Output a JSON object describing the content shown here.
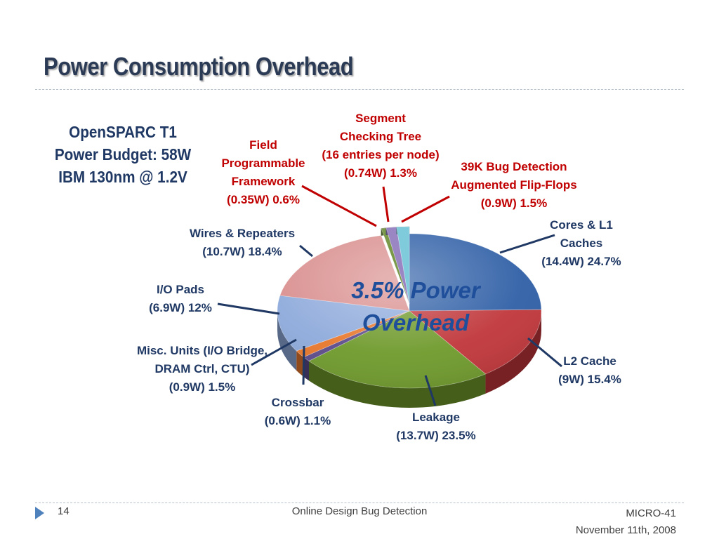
{
  "slide": {
    "title": "Power Consumption Overhead",
    "info_lines": [
      "OpenSPARC T1",
      "Power Budget: 58W",
      "IBM 130nm @ 1.2V"
    ],
    "page_number": "14",
    "footer_center": "Online Design Bug Detection",
    "footer_right_line1": "MICRO-41",
    "footer_right_line2": "November 11th, 2008"
  },
  "chart_data": {
    "type": "pie",
    "title": "",
    "center_annotation": [
      "3.5% Power",
      "Overhead"
    ],
    "unit": "W",
    "total": 58,
    "slices": [
      {
        "label_lines": [
          "Cores & L1",
          "Caches",
          "(14.4W) 24.7%"
        ],
        "watts": 14.4,
        "percent": 24.7,
        "color": "#2f5fa6",
        "highlight": false
      },
      {
        "label_lines": [
          "L2 Cache",
          "(9W) 15.4%"
        ],
        "watts": 9,
        "percent": 15.4,
        "color": "#c0363a",
        "highlight": false
      },
      {
        "label_lines": [
          "Leakage",
          "(13.7W) 23.5%"
        ],
        "watts": 13.7,
        "percent": 23.5,
        "color": "#6f9a2c",
        "highlight": false
      },
      {
        "label_lines": [
          "Crossbar",
          "(0.6W) 1.1%"
        ],
        "watts": 0.6,
        "percent": 1.1,
        "color": "#5b4a8a",
        "highlight": false
      },
      {
        "label_lines": [
          "Misc. Units (I/O Bridge,",
          "DRAM Ctrl, CTU)",
          "(0.9W) 1.5%"
        ],
        "watts": 0.9,
        "percent": 1.5,
        "color": "#e8772b",
        "highlight": false
      },
      {
        "label_lines": [
          "I/O Pads",
          "(6.9W) 12%"
        ],
        "watts": 6.9,
        "percent": 12,
        "color": "#8eaadb",
        "highlight": false
      },
      {
        "label_lines": [
          "Wires & Repeaters",
          "(10.7W) 18.4%"
        ],
        "watts": 10.7,
        "percent": 18.4,
        "color": "#d98d8d",
        "highlight": false
      },
      {
        "label_lines": [
          "Field",
          "Programmable",
          "Framework",
          "(0.35W) 0.6%"
        ],
        "watts": 0.35,
        "percent": 0.6,
        "color": "#7a9a4a",
        "highlight": true
      },
      {
        "label_lines": [
          "Segment",
          "Checking Tree",
          "(16 entries per node)",
          "(0.74W) 1.3%"
        ],
        "watts": 0.74,
        "percent": 1.3,
        "color": "#9b86c4",
        "highlight": true
      },
      {
        "label_lines": [
          "39K Bug Detection",
          "Augmented Flip-Flops",
          "(0.9W) 1.5%"
        ],
        "watts": 0.9,
        "percent": 1.5,
        "color": "#7fcbdc",
        "highlight": true
      }
    ],
    "colors": {
      "label": "#1f3864",
      "highlight_label": "#c00000",
      "annotation": "#1f4e9a",
      "leader": "#1f3864",
      "highlight_leader": "#c00000"
    }
  }
}
